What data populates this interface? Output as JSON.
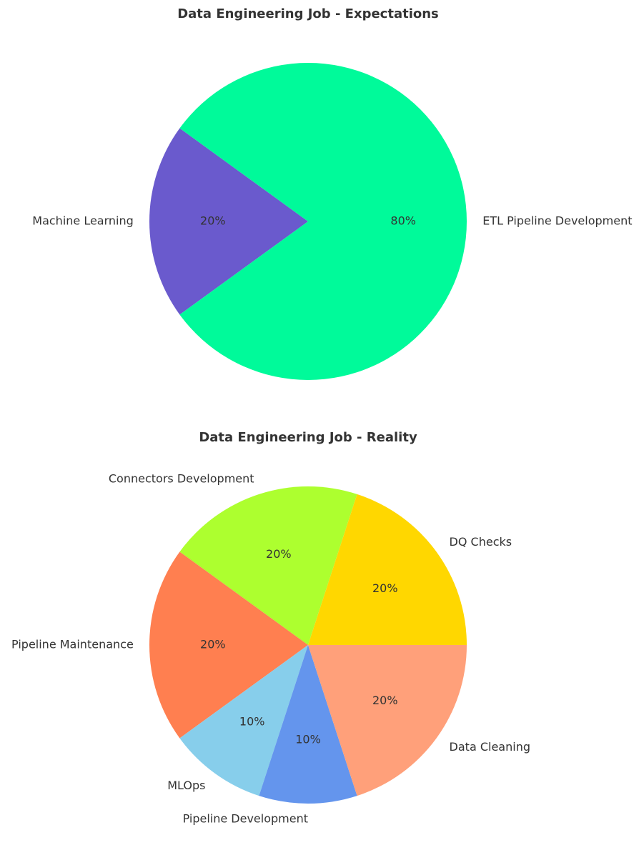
{
  "chart_data": [
    {
      "type": "pie",
      "title": "Data Engineering Job - Expectations",
      "categories": [
        "Machine Learning",
        "ETL Pipeline Development"
      ],
      "values": [
        20,
        80
      ],
      "value_labels": [
        "20%",
        "80%"
      ],
      "colors": [
        "#6A5ACD",
        "#00FA9A"
      ],
      "start_angle_deg": 144,
      "direction": "counterclockwise"
    },
    {
      "type": "pie",
      "title": "Data Engineering Job - Reality",
      "categories": [
        "Connectors Development",
        "Pipeline Maintenance",
        "MLOps",
        "Pipeline Development",
        "Data Cleaning",
        "DQ Checks"
      ],
      "values": [
        20,
        20,
        10,
        10,
        20,
        20
      ],
      "value_labels": [
        "20%",
        "20%",
        "10%",
        "10%",
        "20%",
        "20%"
      ],
      "colors": [
        "#ADFF2F",
        "#FF7F50",
        "#87CEEB",
        "#6495ED",
        "#FFA07A",
        "#FFD700"
      ],
      "start_angle_deg": 72,
      "direction": "counterclockwise"
    }
  ]
}
